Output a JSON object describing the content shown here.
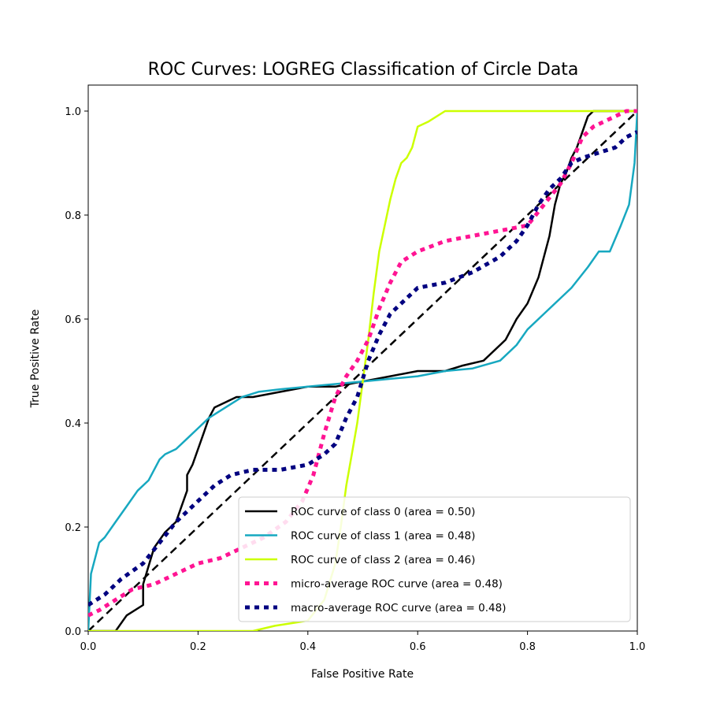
{
  "chart_data": {
    "type": "line",
    "title": "ROC Curves: LOGREG Classification of Circle Data",
    "xlabel": "False Positive Rate",
    "ylabel": "True Positive Rate",
    "xlim": [
      0.0,
      1.0
    ],
    "ylim": [
      0.0,
      1.05
    ],
    "xticks": [
      "0.0",
      "0.2",
      "0.4",
      "0.6",
      "0.8",
      "1.0"
    ],
    "yticks": [
      "0.0",
      "0.2",
      "0.4",
      "0.6",
      "0.8",
      "1.0"
    ],
    "grid": false,
    "legend_position": "lower-right",
    "series": [
      {
        "name": "ROC curve of class 0 (area = 0.50)",
        "color": "#000000",
        "style": "solid",
        "x": [
          0.0,
          0.05,
          0.07,
          0.1,
          0.1,
          0.12,
          0.14,
          0.16,
          0.17,
          0.18,
          0.18,
          0.19,
          0.2,
          0.21,
          0.22,
          0.23,
          0.25,
          0.27,
          0.3,
          0.35,
          0.4,
          0.45,
          0.5,
          0.55,
          0.6,
          0.65,
          0.68,
          0.72,
          0.76,
          0.78,
          0.8,
          0.82,
          0.83,
          0.84,
          0.85,
          0.86,
          0.87,
          0.88,
          0.89,
          0.9,
          0.91,
          0.92,
          1.0
        ],
        "y": [
          0.0,
          0.0,
          0.03,
          0.05,
          0.09,
          0.16,
          0.19,
          0.21,
          0.24,
          0.27,
          0.3,
          0.32,
          0.35,
          0.38,
          0.41,
          0.43,
          0.44,
          0.45,
          0.45,
          0.46,
          0.47,
          0.47,
          0.48,
          0.49,
          0.5,
          0.5,
          0.51,
          0.52,
          0.56,
          0.6,
          0.63,
          0.68,
          0.72,
          0.76,
          0.82,
          0.86,
          0.88,
          0.91,
          0.93,
          0.96,
          0.99,
          1.0,
          1.0
        ]
      },
      {
        "name": "ROC curve of class 1 (area = 0.48)",
        "color": "#17a8c0",
        "style": "solid",
        "x": [
          0.0,
          0.005,
          0.01,
          0.02,
          0.03,
          0.05,
          0.07,
          0.09,
          0.11,
          0.13,
          0.14,
          0.16,
          0.18,
          0.2,
          0.22,
          0.25,
          0.28,
          0.31,
          0.35,
          0.4,
          0.45,
          0.5,
          0.55,
          0.6,
          0.65,
          0.7,
          0.75,
          0.78,
          0.8,
          0.83,
          0.86,
          0.88,
          0.91,
          0.93,
          0.95,
          0.97,
          0.985,
          0.995,
          1.0
        ],
        "y": [
          0.0,
          0.11,
          0.13,
          0.17,
          0.18,
          0.21,
          0.24,
          0.27,
          0.29,
          0.33,
          0.34,
          0.35,
          0.37,
          0.39,
          0.41,
          0.43,
          0.45,
          0.46,
          0.465,
          0.47,
          0.475,
          0.48,
          0.485,
          0.49,
          0.5,
          0.505,
          0.52,
          0.55,
          0.58,
          0.61,
          0.64,
          0.66,
          0.7,
          0.73,
          0.73,
          0.78,
          0.82,
          0.9,
          1.0
        ]
      },
      {
        "name": "ROC curve of class 2 (area = 0.46)",
        "color": "#ccff00",
        "style": "solid",
        "x": [
          0.0,
          0.3,
          0.34,
          0.37,
          0.4,
          0.43,
          0.45,
          0.46,
          0.47,
          0.48,
          0.49,
          0.5,
          0.51,
          0.52,
          0.53,
          0.54,
          0.55,
          0.56,
          0.57,
          0.58,
          0.59,
          0.6,
          0.62,
          0.65,
          0.7,
          0.8,
          0.9,
          1.0
        ],
        "y": [
          0.0,
          0.0,
          0.01,
          0.015,
          0.02,
          0.06,
          0.13,
          0.2,
          0.28,
          0.34,
          0.4,
          0.48,
          0.56,
          0.65,
          0.73,
          0.78,
          0.83,
          0.87,
          0.9,
          0.91,
          0.93,
          0.97,
          0.98,
          1.0,
          1.0,
          1.0,
          1.0,
          1.0
        ]
      },
      {
        "name": "micro-average ROC curve (area = 0.48)",
        "color": "#ff1493",
        "style": "dotted",
        "x": [
          0.0,
          0.02,
          0.05,
          0.08,
          0.12,
          0.16,
          0.2,
          0.24,
          0.28,
          0.32,
          0.36,
          0.39,
          0.41,
          0.43,
          0.45,
          0.47,
          0.49,
          0.51,
          0.53,
          0.55,
          0.57,
          0.6,
          0.65,
          0.7,
          0.75,
          0.8,
          0.83,
          0.86,
          0.88,
          0.9,
          0.92,
          0.94,
          0.96,
          0.98,
          1.0
        ],
        "y": [
          0.03,
          0.04,
          0.06,
          0.08,
          0.09,
          0.11,
          0.13,
          0.14,
          0.16,
          0.18,
          0.21,
          0.25,
          0.3,
          0.38,
          0.45,
          0.49,
          0.52,
          0.56,
          0.62,
          0.67,
          0.71,
          0.73,
          0.75,
          0.76,
          0.77,
          0.78,
          0.82,
          0.86,
          0.9,
          0.95,
          0.97,
          0.98,
          0.99,
          1.0,
          1.0
        ]
      },
      {
        "name": "macro-average ROC curve (area = 0.48)",
        "color": "#000080",
        "style": "dotted",
        "x": [
          0.0,
          0.03,
          0.06,
          0.1,
          0.13,
          0.16,
          0.2,
          0.23,
          0.26,
          0.3,
          0.35,
          0.4,
          0.43,
          0.45,
          0.47,
          0.49,
          0.51,
          0.53,
          0.55,
          0.57,
          0.6,
          0.65,
          0.7,
          0.75,
          0.78,
          0.8,
          0.82,
          0.84,
          0.86,
          0.88,
          0.9,
          0.93,
          0.96,
          0.98,
          1.0
        ],
        "y": [
          0.05,
          0.07,
          0.1,
          0.13,
          0.17,
          0.21,
          0.25,
          0.28,
          0.3,
          0.31,
          0.31,
          0.32,
          0.34,
          0.36,
          0.41,
          0.45,
          0.52,
          0.57,
          0.61,
          0.63,
          0.66,
          0.67,
          0.69,
          0.72,
          0.75,
          0.78,
          0.82,
          0.85,
          0.87,
          0.9,
          0.91,
          0.92,
          0.93,
          0.95,
          0.96
        ]
      },
      {
        "name": "",
        "color": "#000000",
        "style": "dashed",
        "x": [
          0.0,
          1.0
        ],
        "y": [
          0.0,
          1.0
        ]
      }
    ]
  }
}
